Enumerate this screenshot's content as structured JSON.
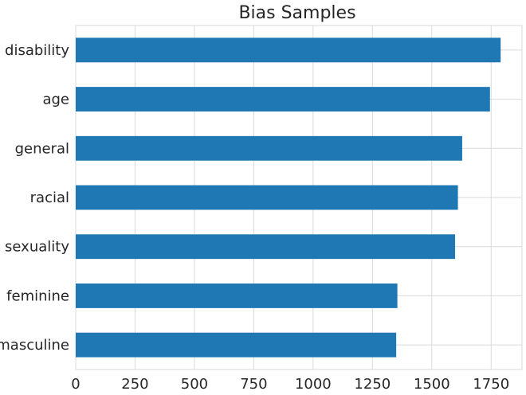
{
  "chart_data": {
    "type": "bar",
    "orientation": "horizontal",
    "title": "Bias Samples",
    "xlabel": "",
    "ylabel": "",
    "categories": [
      "masculine",
      "feminine",
      "sexuality",
      "racial",
      "general",
      "age",
      "disability"
    ],
    "values": [
      1350,
      1355,
      1598,
      1610,
      1628,
      1745,
      1790
    ],
    "xlim": [
      0,
      1880
    ],
    "xticks": [
      0,
      250,
      500,
      750,
      1000,
      1250,
      1500,
      1750
    ],
    "grid": true,
    "legend": "none"
  },
  "colors": {
    "bar": "#1f77b4",
    "grid": "#d9d9d9",
    "text": "#262626",
    "background": "#ffffff"
  }
}
